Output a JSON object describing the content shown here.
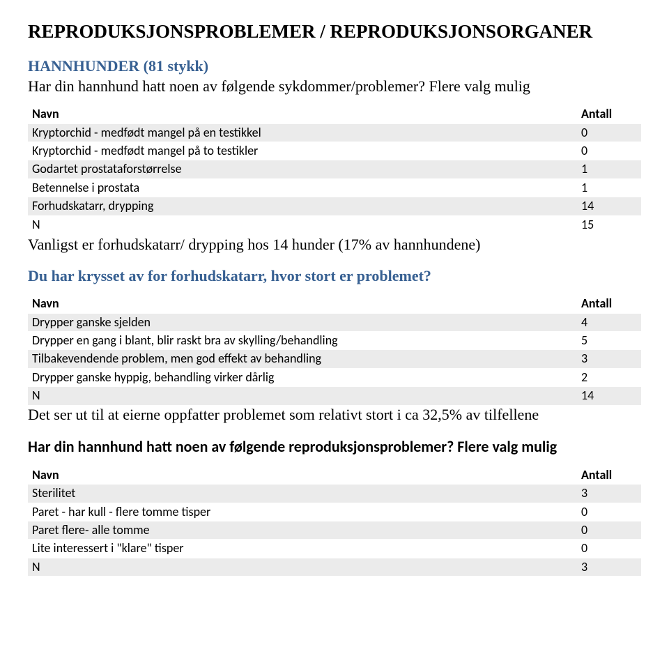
{
  "title": "REPRODUKSJONSPROBLEMER / REPRODUKSJONSORGANER",
  "section1": {
    "label": "HANNHUNDER (81 stykk)",
    "question": "Har din hannhund hatt noen av følgende sykdommer/problemer? Flere valg mulig"
  },
  "table_labels": {
    "name": "Navn",
    "count": "Antall"
  },
  "table1": {
    "rows": [
      {
        "label": "Kryptorchid - medfødt mangel på en testikkel",
        "value": "0"
      },
      {
        "label": "Kryptorchid - medfødt mangel på to testikler",
        "value": "0"
      },
      {
        "label": "Godartet prostataforstørrelse",
        "value": "1"
      },
      {
        "label": "Betennelse i prostata",
        "value": "1"
      },
      {
        "label": "Forhudskatarr, drypping",
        "value": "14"
      },
      {
        "label": "N",
        "value": "15"
      }
    ]
  },
  "prevalence_text": "Vanligst er forhudskatarr/ drypping hos 14 hunder (17% av hannhundene)",
  "section2": {
    "question": "Du har krysset av for forhudskatarr, hvor stort er problemet?"
  },
  "table2": {
    "rows": [
      {
        "label": "Drypper ganske sjelden",
        "value": "4"
      },
      {
        "label": "Drypper en gang i blant, blir raskt bra av skylling/behandling",
        "value": "5"
      },
      {
        "label": "Tilbakevendende problem, men god effekt av behandling",
        "value": "3"
      },
      {
        "label": "Drypper ganske hyppig, behandling virker dårlig",
        "value": "2"
      },
      {
        "label": "N",
        "value": "14"
      }
    ]
  },
  "owners_text": "Det ser ut til at eierne oppfatter problemet som relativt stort i ca 32,5% av tilfellene",
  "section3": {
    "question": "Har din hannhund hatt noen av følgende reproduksjonsproblemer? Flere valg mulig"
  },
  "table3": {
    "rows": [
      {
        "label": "Sterilitet",
        "value": "3"
      },
      {
        "label": "Paret - har kull - flere tomme tisper",
        "value": "0"
      },
      {
        "label": "Paret flere- alle tomme",
        "value": "0"
      },
      {
        "label": "Lite interessert i \"klare\" tisper",
        "value": "0"
      },
      {
        "label": "N",
        "value": "3"
      }
    ]
  },
  "colors": {
    "heading_blue": "#376092",
    "row_alt": "#ebebeb"
  }
}
